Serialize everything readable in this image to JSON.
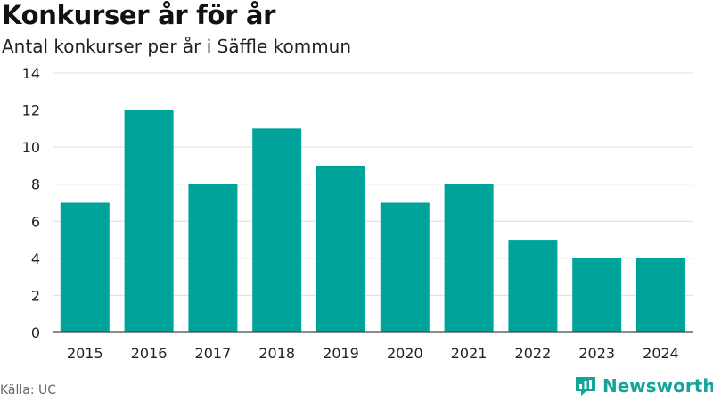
{
  "title": "Konkurser år för år",
  "subtitle": "Antal konkurser per år i Säffle kommun",
  "source": "Källa: UC",
  "brand": "Newsworthy",
  "colors": {
    "bar": "#00a39a",
    "brand": "#15a39a",
    "grid": "#dddddd"
  },
  "chart_data": {
    "type": "bar",
    "categories": [
      "2015",
      "2016",
      "2017",
      "2018",
      "2019",
      "2020",
      "2021",
      "2022",
      "2023",
      "2024"
    ],
    "values": [
      7,
      12,
      8,
      11,
      9,
      7,
      8,
      5,
      4,
      4
    ],
    "ylim": [
      0,
      14
    ],
    "yticks": [
      "0",
      "2",
      "4",
      "6",
      "8",
      "10",
      "12",
      "14"
    ],
    "grid": true
  }
}
